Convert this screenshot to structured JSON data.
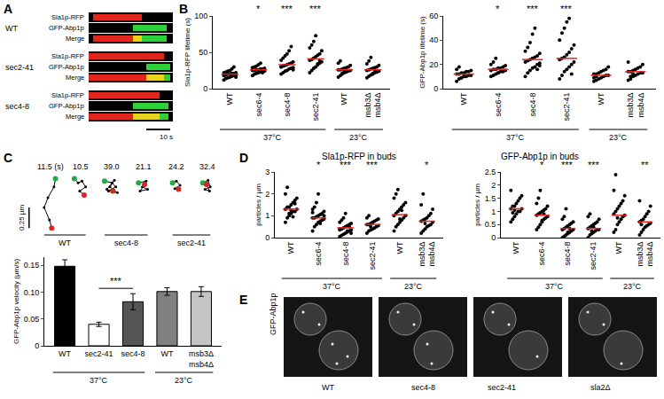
{
  "panel_labels": [
    "A",
    "B",
    "C",
    "D",
    "E"
  ],
  "kymographs": {
    "strains": [
      "WT",
      "sec2-41",
      "sec4-8"
    ],
    "channels": [
      "Sla1p-RFP",
      "GFP-Abp1p",
      "Merge"
    ],
    "scale_bar": "10 s"
  },
  "micrographs": {
    "channel": "GFP-Abp1p",
    "strains": [
      "WT",
      "sec4-8",
      "sec2-41",
      "sla2Δ"
    ]
  },
  "chart_data": [
    {
      "type": "scatter",
      "marker": "circle",
      "y_label": "Sla1p-RFP lifetime (s)",
      "categories": [
        "WT",
        "sec6-4",
        "sec4-8",
        "sec2-41",
        "WT",
        "msb3Δ msb4Δ"
      ],
      "ylim": [
        0,
        100
      ],
      "yticks": [
        0,
        50,
        100
      ],
      "grid": false,
      "significance": [
        null,
        "*",
        "***",
        "***",
        null,
        null
      ],
      "groups": [
        {
          "label": "37°C",
          "from": 0,
          "to": 3
        },
        {
          "label": "23°C",
          "from": 4,
          "to": 5
        }
      ],
      "series": [
        {
          "type": "dots",
          "color": "#000000",
          "values": [
            [
              12,
              14,
              15,
              16,
              17,
              18,
              18,
              19,
              19,
              20,
              20,
              21,
              21,
              22,
              22,
              23,
              24,
              25,
              27,
              30,
              16,
              18
            ],
            [
              18,
              20,
              21,
              22,
              23,
              24,
              24,
              25,
              25,
              26,
              26,
              27,
              27,
              28,
              29,
              30,
              31,
              33,
              35,
              22
            ],
            [
              20,
              22,
              24,
              25,
              27,
              28,
              29,
              30,
              31,
              32,
              33,
              34,
              35,
              37,
              39,
              42,
              45,
              48,
              52,
              58,
              26,
              30
            ],
            [
              22,
              25,
              28,
              30,
              33,
              35,
              37,
              39,
              40,
              42,
              44,
              46,
              48,
              52,
              56,
              60,
              65,
              73,
              34,
              38
            ],
            [
              16,
              18,
              20,
              22,
              23,
              24,
              25,
              26,
              26,
              27,
              28,
              29,
              30,
              32,
              35,
              38,
              21,
              24
            ],
            [
              15,
              17,
              19,
              21,
              22,
              23,
              24,
              25,
              26,
              27,
              28,
              29,
              30,
              32,
              34,
              38,
              43,
              20,
              25
            ]
          ]
        },
        {
          "type": "mean",
          "color": "#e8231f",
          "values": [
            20,
            26,
            33,
            41,
            26,
            26
          ]
        }
      ]
    },
    {
      "type": "scatter",
      "marker": "circle",
      "y_label": "GFP-Abp1p lifetime (s)",
      "categories": [
        "WT",
        "sec6-4",
        "sec4-8",
        "sec2-41",
        "WT",
        "msb3Δ msb4Δ"
      ],
      "ylim": [
        0,
        60
      ],
      "yticks": [
        0,
        20,
        40,
        60
      ],
      "grid": false,
      "significance": [
        null,
        "*",
        "***",
        "***",
        null,
        null
      ],
      "groups": [
        {
          "label": "37°C",
          "from": 0,
          "to": 3
        },
        {
          "label": "23°C",
          "from": 4,
          "to": 5
        }
      ],
      "series": [
        {
          "type": "dots",
          "color": "#000000",
          "values": [
            [
              6,
              8,
              9,
              10,
              10,
              11,
              11,
              12,
              12,
              13,
              13,
              14,
              14,
              15,
              16,
              18,
              9,
              12
            ],
            [
              10,
              11,
              12,
              13,
              14,
              14,
              15,
              15,
              16,
              16,
              17,
              17,
              18,
              19,
              20,
              22,
              25,
              13
            ],
            [
              10,
              13,
              15,
              17,
              18,
              20,
              21,
              22,
              23,
              24,
              25,
              26,
              27,
              29,
              31,
              34,
              38,
              45,
              50,
              16,
              19
            ],
            [
              8,
              11,
              14,
              16,
              18,
              20,
              22,
              24,
              25,
              26,
              28,
              30,
              33,
              36,
              40,
              46,
              50,
              55,
              58,
              12
            ],
            [
              6,
              7,
              8,
              9,
              10,
              11,
              11,
              12,
              12,
              13,
              14,
              15,
              16,
              18,
              9,
              10
            ],
            [
              7,
              8,
              10,
              11,
              12,
              13,
              13,
              14,
              14,
              15,
              16,
              17,
              18,
              20,
              22,
              10,
              12
            ]
          ]
        },
        {
          "type": "mean",
          "color": "#e8231f",
          "values": [
            12,
            16,
            24,
            25,
            11,
            14
          ]
        }
      ]
    },
    {
      "type": "tracks",
      "tick_labels": false,
      "color": "#000000",
      "xlim": [
        -0.3,
        2.4
      ],
      "ylim": [
        0,
        0.72
      ],
      "scale_bar": {
        "length": 0.25,
        "label": "0.25 µm"
      },
      "groups": [
        {
          "label": "WT",
          "from": 0,
          "to": 1
        },
        {
          "label": "sec4-8",
          "from": 2,
          "to": 3
        },
        {
          "label": "sec2-41",
          "from": 4,
          "to": 5
        }
      ],
      "series": [
        {
          "label": "11.5 (s)",
          "x": [
            0.2,
            0.18,
            0.1,
            0.05,
            0.12,
            0.15
          ],
          "y": [
            0.65,
            0.55,
            0.42,
            0.3,
            0.15,
            0.05
          ]
        },
        {
          "label": "10.5",
          "x": [
            0.45,
            0.5,
            0.55,
            0.6,
            0.52,
            0.58
          ],
          "y": [
            0.65,
            0.6,
            0.62,
            0.55,
            0.5,
            0.45
          ]
        },
        {
          "label": "39.0",
          "x": [
            0.85,
            0.95,
            1.0,
            0.9,
            1.02,
            0.92,
            0.98,
            0.88,
            0.96
          ],
          "y": [
            0.62,
            0.6,
            0.55,
            0.5,
            0.48,
            0.55,
            0.63,
            0.52,
            0.5
          ]
        },
        {
          "label": "21.1",
          "x": [
            1.3,
            1.4,
            1.35,
            1.42,
            1.32,
            1.38
          ],
          "y": [
            0.6,
            0.62,
            0.55,
            0.52,
            0.5,
            0.58
          ]
        },
        {
          "label": "24.2",
          "x": [
            1.75,
            1.8,
            1.85,
            1.78,
            1.83
          ],
          "y": [
            0.6,
            0.62,
            0.57,
            0.53,
            0.52
          ]
        },
        {
          "label": "32.4",
          "x": [
            2.15,
            2.22,
            2.25,
            2.18,
            2.24,
            2.2
          ],
          "y": [
            0.6,
            0.63,
            0.55,
            0.52,
            0.5,
            0.58
          ]
        }
      ]
    },
    {
      "type": "bar",
      "y_label": "GFP-Abp1p velocity (µm/s)",
      "categories": [
        "WT",
        "sec2-41",
        "sec4-8",
        "WT",
        "msb3Δ msb4Δ"
      ],
      "values": [
        0.148,
        0.04,
        0.082,
        0.101,
        0.101
      ],
      "errors": [
        0.012,
        0.004,
        0.015,
        0.007,
        0.009
      ],
      "colors": [
        "#000000",
        "#ffffff",
        "#555555",
        "#808080",
        "#c4c4c4"
      ],
      "ylim": [
        0,
        0.165
      ],
      "yticks": [
        0,
        0.05,
        {
          "value": 0.1,
          "label": "0.10"
        },
        0.15
      ],
      "grid": false,
      "comparisons": [
        {
          "from": 1,
          "to": 2,
          "label": "***"
        }
      ],
      "groups": [
        {
          "label": "37°C",
          "from": 0,
          "to": 2
        },
        {
          "label": "23°C",
          "from": 3,
          "to": 4
        }
      ]
    },
    {
      "type": "scatter",
      "marker": "circle",
      "title": "Sla1p-RFP in buds",
      "y_label": "particles / µm",
      "categories": [
        "WT",
        "sec6-4",
        "sec4-8",
        "sec2-41",
        "WT",
        "msb3Δ msb4Δ"
      ],
      "ylim": [
        0,
        3
      ],
      "yticks": [
        0,
        1,
        2,
        3
      ],
      "grid": false,
      "significance": [
        null,
        "*",
        "***",
        "***",
        null,
        "*"
      ],
      "groups": [
        {
          "label": "37°C",
          "from": 0,
          "to": 3
        },
        {
          "label": "23°C",
          "from": 4,
          "to": 5
        }
      ],
      "series": [
        {
          "type": "dots",
          "color": "#000000",
          "values": [
            [
              0.7,
              0.9,
              1.0,
              1.1,
              1.2,
              1.2,
              1.3,
              1.3,
              1.4,
              1.4,
              1.5,
              1.6,
              1.7,
              1.8,
              2.0,
              2.3,
              1.1,
              1.25,
              0.95,
              1.55
            ],
            [
              0.3,
              0.5,
              0.6,
              0.7,
              0.75,
              0.8,
              0.85,
              0.9,
              0.9,
              0.95,
              1.0,
              1.05,
              1.1,
              1.2,
              1.3,
              1.4,
              1.6,
              2.0,
              0.65,
              0.8,
              1.0,
              1.15
            ],
            [
              0.05,
              0.1,
              0.15,
              0.2,
              0.25,
              0.3,
              0.35,
              0.4,
              0.4,
              0.45,
              0.5,
              0.55,
              0.6,
              0.65,
              0.7,
              0.8,
              0.9,
              1.1,
              0.3,
              0.5,
              0.2,
              0.35
            ],
            [
              0.2,
              0.3,
              0.35,
              0.4,
              0.45,
              0.5,
              0.55,
              0.6,
              0.6,
              0.65,
              0.7,
              0.75,
              0.8,
              0.85,
              0.9,
              1.0,
              0.5,
              0.7
            ],
            [
              0.3,
              0.5,
              0.6,
              0.7,
              0.8,
              0.9,
              1.0,
              1.0,
              1.1,
              1.2,
              1.3,
              1.4,
              1.5,
              1.6,
              1.8,
              2.0,
              2.2,
              0.85,
              1.25
            ],
            [
              0.2,
              0.3,
              0.4,
              0.5,
              0.55,
              0.6,
              0.7,
              0.75,
              0.8,
              0.85,
              0.9,
              1.0,
              1.1,
              1.3,
              1.5,
              2.0,
              0.65
            ]
          ]
        },
        {
          "type": "mean",
          "color": "#e8231f",
          "values": [
            1.3,
            0.9,
            0.45,
            0.6,
            1.05,
            0.75
          ]
        }
      ]
    },
    {
      "type": "scatter",
      "marker": "circle",
      "title": "GFP-Abp1p in buds",
      "y_label": "particles / µm",
      "categories": [
        "WT",
        "sec6-4",
        "sec4-8",
        "sec2-41",
        "WT",
        "msb3Δ msb4Δ"
      ],
      "ylim": [
        0,
        2.5
      ],
      "yticks": [
        0,
        0.5,
        1,
        1.5,
        2,
        2.5
      ],
      "grid": false,
      "significance": [
        null,
        "*",
        "***",
        "***",
        null,
        "**"
      ],
      "groups": [
        {
          "label": "37°C",
          "from": 0,
          "to": 3
        },
        {
          "label": "23°C",
          "from": 4,
          "to": 5
        }
      ],
      "series": [
        {
          "type": "dots",
          "color": "#000000",
          "values": [
            [
              0.6,
              0.7,
              0.8,
              0.9,
              1.0,
              1.0,
              1.1,
              1.1,
              1.2,
              1.2,
              1.3,
              1.4,
              1.5,
              1.6,
              1.8,
              0.95,
              1.05
            ],
            [
              0.3,
              0.4,
              0.5,
              0.6,
              0.7,
              0.75,
              0.8,
              0.85,
              0.9,
              0.95,
              1.0,
              1.05,
              1.1,
              1.2,
              1.3,
              1.5,
              1.8,
              0.65,
              0.9
            ],
            [
              0.0,
              0.05,
              0.1,
              0.15,
              0.2,
              0.25,
              0.3,
              0.3,
              0.35,
              0.4,
              0.45,
              0.5,
              0.55,
              0.6,
              0.7,
              0.8,
              1.1,
              0.2,
              0.35
            ],
            [
              0.0,
              0.1,
              0.15,
              0.2,
              0.25,
              0.3,
              0.3,
              0.35,
              0.4,
              0.45,
              0.5,
              0.55,
              0.6,
              0.7,
              0.8,
              0.9,
              0.25,
              0.4
            ],
            [
              0.2,
              0.3,
              0.5,
              0.6,
              0.7,
              0.8,
              0.85,
              0.9,
              1.0,
              1.1,
              1.2,
              1.3,
              1.4,
              1.6,
              1.8,
              2.4,
              0.75
            ],
            [
              0.1,
              0.2,
              0.3,
              0.4,
              0.45,
              0.5,
              0.55,
              0.6,
              0.65,
              0.7,
              0.8,
              0.9,
              1.0,
              1.2,
              1.4,
              0.5
            ]
          ]
        },
        {
          "type": "mean",
          "color": "#e8231f",
          "values": [
            1.1,
            0.85,
            0.35,
            0.35,
            0.85,
            0.6
          ]
        }
      ]
    }
  ]
}
